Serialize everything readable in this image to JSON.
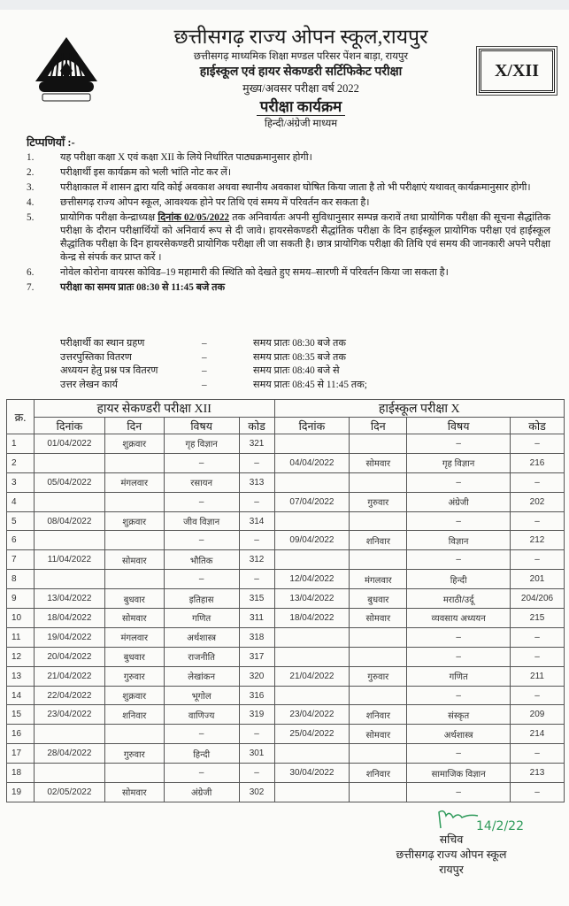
{
  "header": {
    "org": "छत्तीसगढ़ राज्य ओपन स्कूल,रायपुर",
    "address": "छत्तीसगढ़ माध्यमिक शिक्षा मण्डल परिसर पेंशन बाड़ा, रायपुर",
    "exam": "हाईस्कूल एवं हायर सेकण्डरी सर्टिफिकेट परीक्षा",
    "year": "मुख्य/अवसर परीक्षा वर्ष 2022",
    "title": "परीक्षा कार्यक्रम",
    "medium": "हिन्दी/अंग्रेजी माध्यम",
    "class_badge": "X/XII",
    "logo_icon": "school-emblem-logo"
  },
  "notes": {
    "title": "टिप्पणियाँ :-",
    "items": [
      {
        "num": "1.",
        "text": "यह परीक्षा कक्षा X एवं कक्षा XII के लिये निर्धारित पाठ्यक्रमानुसार होगी।"
      },
      {
        "num": "2.",
        "text": "परीक्षार्थी इस कार्यक्रम को भली भांति नोट कर लें।"
      },
      {
        "num": "3.",
        "text": "परीक्षाकाल में शासन द्वारा यदि कोई अवकाश अथवा स्थानीय अवकाश घोषित किया जाता है तो भी परीक्षाएं यथावत् कार्यक्रमानुसार होगी।"
      },
      {
        "num": "4.",
        "text": "छत्तीसगढ़ राज्य ओपन स्कूल, आवश्यक होने पर तिथि एवं समय में परिवर्तन कर सकता है।"
      },
      {
        "num": "5.",
        "pre": "प्रायोगिक परीक्षा केन्द्राध्यक्ष ",
        "bold": "दिनांक 02/05/2022",
        "text": " तक अनिवार्यतः अपनी सुविधानुसार सम्पन्न करावें तथा प्रायोगिक परीक्षा की सूचना सैद्धांतिक परीक्षा के दौरान परीक्षार्थियों को अनिवार्य रूप से दी जावे। हायरसेकण्डरी सैद्धांतिक परीक्षा के दिन हाईस्कूल प्रायोगिक परीक्षा एवं हाईस्कूल सैद्धांतिक परीक्षा के दिन हायरसेकण्डरी प्रायोगिक परीक्षा ली जा सकती है। छात्र प्रायोगिक परीक्षा की तिथि एवं समय की जानकारी अपने परीक्षा केन्द्र से संपर्क कर प्राप्त करें ।"
      },
      {
        "num": "6.",
        "text": "नोवेल कोरोना वायरस कोविड–19 महामारी की स्थिति को देखते हुए समय–सारणी में परिवर्तन किया जा सकता है।"
      },
      {
        "num": "7.",
        "text": "परीक्षा का समय प्रातः 08:30 से 11:45 बजे तक"
      }
    ],
    "timing": [
      {
        "activity": "परीक्षार्थी का स्थान ग्रहण",
        "dash": "–",
        "time": "समय प्रातः 08:30 बजे तक"
      },
      {
        "activity": "उत्तरपुस्तिका वितरण",
        "dash": "–",
        "time": "समय प्रातः 08:35 बजे तक"
      },
      {
        "activity": "अध्ययन हेतु प्रश्न पत्र वितरण",
        "dash": "–",
        "time": "समय प्रातः 08:40 बजे से"
      },
      {
        "activity": "उत्तर लेखन कार्य",
        "dash": "–",
        "time": "समय प्रातः 08:45 से 11:45 तक;"
      }
    ]
  },
  "table": {
    "sn_header": "क्र.",
    "xii_header": "हायर सेकण्डरी परीक्षा XII",
    "x_header": "हाईस्कूल परीक्षा  X",
    "columns": [
      "दिनांक",
      "दिन",
      "विषय",
      "कोड"
    ],
    "rows": [
      {
        "sn": "1",
        "xii": [
          "01/04/2022",
          "शुक्रवार",
          "गृह विज्ञान",
          "321"
        ],
        "x": [
          "",
          "",
          "–",
          "–"
        ]
      },
      {
        "sn": "2",
        "xii": [
          "",
          "",
          "–",
          "–"
        ],
        "x": [
          "04/04/2022",
          "सोमवार",
          "गृह विज्ञान",
          "216"
        ]
      },
      {
        "sn": "3",
        "xii": [
          "05/04/2022",
          "मंगलवार",
          "रसायन",
          "313"
        ],
        "x": [
          "",
          "",
          "–",
          "–"
        ]
      },
      {
        "sn": "4",
        "xii": [
          "",
          "",
          "–",
          "–"
        ],
        "x": [
          "07/04/2022",
          "गुरुवार",
          "अंग्रेजी",
          "202"
        ]
      },
      {
        "sn": "5",
        "xii": [
          "08/04/2022",
          "शुक्रवार",
          "जीव विज्ञान",
          "314"
        ],
        "x": [
          "",
          "",
          "–",
          "–"
        ]
      },
      {
        "sn": "6",
        "xii": [
          "",
          "",
          "–",
          "–"
        ],
        "x": [
          "09/04/2022",
          "शनिवार",
          "विज्ञान",
          "212"
        ]
      },
      {
        "sn": "7",
        "xii": [
          "11/04/2022",
          "सोमवार",
          "भौतिक",
          "312"
        ],
        "x": [
          "",
          "",
          "–",
          "–"
        ]
      },
      {
        "sn": "8",
        "xii": [
          "",
          "",
          "–",
          "–"
        ],
        "x": [
          "12/04/2022",
          "मंगलवार",
          "हिन्दी",
          "201"
        ]
      },
      {
        "sn": "9",
        "xii": [
          "13/04/2022",
          "बुधवार",
          "इतिहास",
          "315"
        ],
        "x": [
          "13/04/2022",
          "बुधवार",
          "मराठी/उर्दू",
          "204/206"
        ]
      },
      {
        "sn": "10",
        "xii": [
          "18/04/2022",
          "सोमवार",
          "गणित",
          "311"
        ],
        "x": [
          "18/04/2022",
          "सोमवार",
          "व्यवसाय अध्ययन",
          "215"
        ]
      },
      {
        "sn": "11",
        "xii": [
          "19/04/2022",
          "मंगलवार",
          "अर्थशास्त्र",
          "318"
        ],
        "x": [
          "",
          "",
          "–",
          "–"
        ]
      },
      {
        "sn": "12",
        "xii": [
          "20/04/2022",
          "बुधवार",
          "राजनीति",
          "317"
        ],
        "x": [
          "",
          "",
          "–",
          "–"
        ]
      },
      {
        "sn": "13",
        "xii": [
          "21/04/2022",
          "गुरुवार",
          "लेखांकन",
          "320"
        ],
        "x": [
          "21/04/2022",
          "गुरुवार",
          "गणित",
          "211"
        ]
      },
      {
        "sn": "14",
        "xii": [
          "22/04/2022",
          "शुक्रवार",
          "भूगोल",
          "316"
        ],
        "x": [
          "",
          "",
          "–",
          "–"
        ]
      },
      {
        "sn": "15",
        "xii": [
          "23/04/2022",
          "शनिवार",
          "वाणिज्य",
          "319"
        ],
        "x": [
          "23/04/2022",
          "शनिवार",
          "संस्कृत",
          "209"
        ]
      },
      {
        "sn": "16",
        "xii": [
          "",
          "",
          "–",
          "–"
        ],
        "x": [
          "25/04/2022",
          "सोमवार",
          "अर्थशास्त्र",
          "214"
        ]
      },
      {
        "sn": "17",
        "xii": [
          "28/04/2022",
          "गुरुवार",
          "हिन्दी",
          "301"
        ],
        "x": [
          "",
          "",
          "–",
          "–"
        ]
      },
      {
        "sn": "18",
        "xii": [
          "",
          "",
          "–",
          "–"
        ],
        "x": [
          "30/04/2022",
          "शनिवार",
          "सामाजिक विज्ञान",
          "213"
        ]
      },
      {
        "sn": "19",
        "xii": [
          "02/05/2022",
          "सोमवार",
          "अंग्रेजी",
          "302"
        ],
        "x": [
          "",
          "",
          "–",
          "–"
        ]
      }
    ]
  },
  "signature": {
    "handwritten": "14/2/22",
    "designation": "सचिव",
    "org": "छत्तीसगढ़ राज्य ओपन स्कूल",
    "city": "रायपुर",
    "ink_color": "#2e9a5a"
  }
}
